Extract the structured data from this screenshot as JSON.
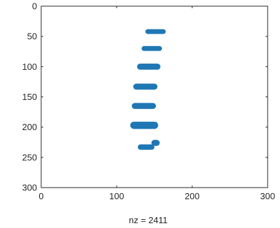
{
  "chart_data": {
    "type": "scatter",
    "plot": "spy sparsity pattern",
    "xlabel": "nz = 2411",
    "xlim": [
      0,
      300
    ],
    "ylim": [
      300,
      0
    ],
    "y_reversed": true,
    "xticks": [
      0,
      100,
      200,
      300
    ],
    "yticks": [
      0,
      50,
      100,
      150,
      200,
      250,
      300
    ],
    "grid": false,
    "marker_color": "#1f77b4",
    "nonzero_bands": [
      {
        "row_center": 42,
        "col_start": 138,
        "col_end": 165,
        "thickness": 8
      },
      {
        "row_center": 70,
        "col_start": 133,
        "col_end": 160,
        "thickness": 8
      },
      {
        "row_center": 100,
        "col_start": 127,
        "col_end": 158,
        "thickness": 10
      },
      {
        "row_center": 133,
        "col_start": 122,
        "col_end": 154,
        "thickness": 10
      },
      {
        "row_center": 165,
        "col_start": 120,
        "col_end": 152,
        "thickness": 10
      },
      {
        "row_center": 197,
        "col_start": 118,
        "col_end": 155,
        "thickness": 12
      },
      {
        "row_center": 226,
        "col_start": 146,
        "col_end": 157,
        "thickness": 10
      },
      {
        "row_center": 233,
        "col_start": 128,
        "col_end": 150,
        "thickness": 9
      }
    ]
  }
}
